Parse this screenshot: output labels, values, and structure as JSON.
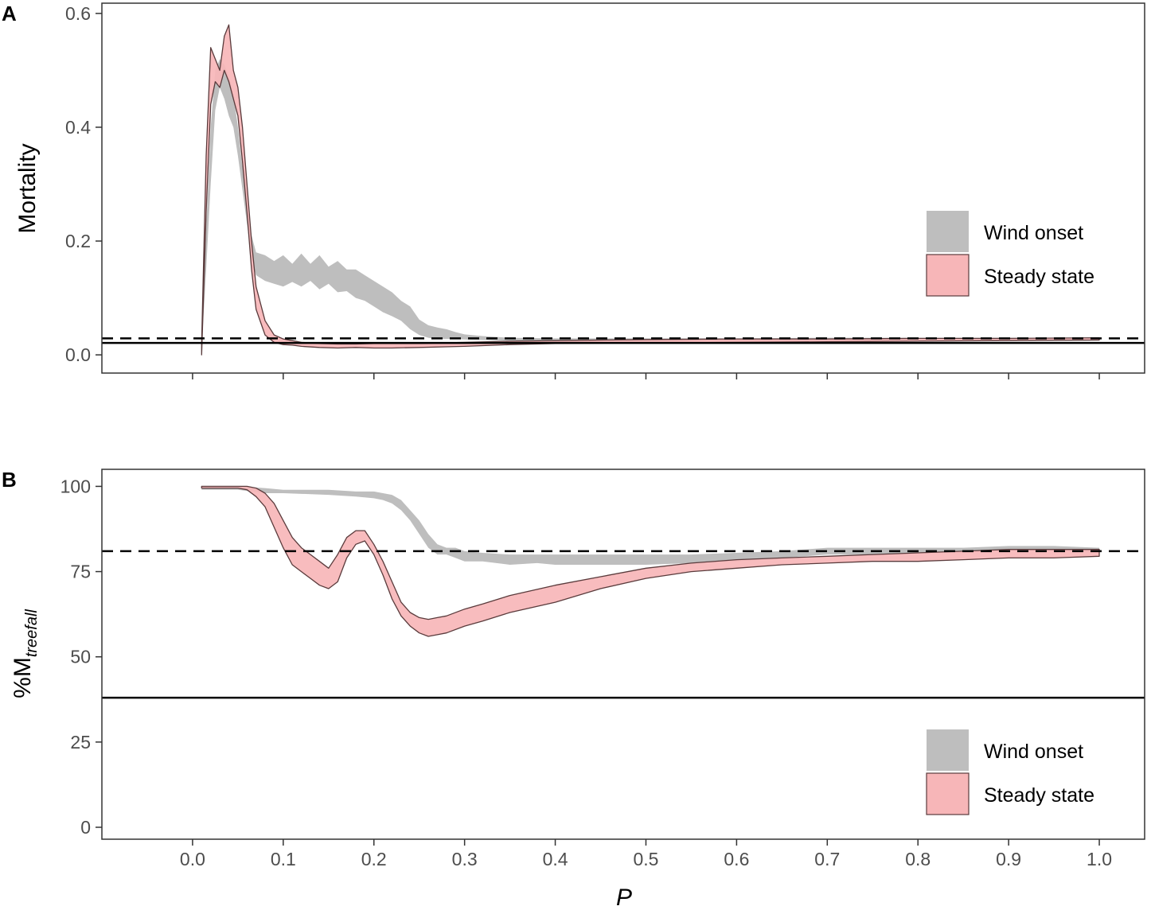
{
  "colors": {
    "wind_onset": "#bebebe",
    "steady_state": "#f7b6b8",
    "steady_state_stroke": "#5a3b3c",
    "reference_line": "#000000",
    "panel_border": "#333333",
    "tick_label": "#4d4d4d"
  },
  "chart_data": [
    {
      "type": "area",
      "panel_label": "A",
      "xlabel": "",
      "ylabel": "Mortality",
      "xlim": [
        -0.1,
        1.05
      ],
      "ylim": [
        -0.032,
        0.618
      ],
      "x_ticks": [
        "0.0",
        "0.1",
        "0.2",
        "0.3",
        "0.4",
        "0.5",
        "0.6",
        "0.7",
        "0.8",
        "0.9",
        "1.0"
      ],
      "x_tick_labels_shown": false,
      "y_ticks": [
        "0.0",
        "0.2",
        "0.4",
        "0.6"
      ],
      "grid": false,
      "legend": {
        "position": "right",
        "entries": [
          "Wind onset",
          "Steady state"
        ]
      },
      "reference_lines": [
        {
          "style": "dashed",
          "y": 0.029
        },
        {
          "style": "solid",
          "y": 0.021
        }
      ],
      "series": [
        {
          "name": "Wind onset",
          "kind": "ribbon",
          "x": [
            0.01,
            0.015,
            0.02,
            0.025,
            0.03,
            0.035,
            0.04,
            0.045,
            0.05,
            0.055,
            0.06,
            0.065,
            0.07,
            0.08,
            0.09,
            0.1,
            0.11,
            0.12,
            0.13,
            0.14,
            0.15,
            0.16,
            0.17,
            0.18,
            0.19,
            0.2,
            0.21,
            0.22,
            0.23,
            0.24,
            0.25,
            0.26,
            0.27,
            0.28,
            0.29,
            0.3,
            0.32,
            0.35,
            0.4,
            0.5,
            0.6,
            0.7,
            0.8,
            0.9,
            1.0
          ],
          "lower": [
            0.01,
            0.15,
            0.3,
            0.43,
            0.47,
            0.45,
            0.42,
            0.4,
            0.35,
            0.29,
            0.23,
            0.17,
            0.14,
            0.13,
            0.125,
            0.12,
            0.128,
            0.12,
            0.13,
            0.115,
            0.125,
            0.11,
            0.112,
            0.1,
            0.095,
            0.085,
            0.075,
            0.068,
            0.06,
            0.045,
            0.035,
            0.03,
            0.028,
            0.028,
            0.028,
            0.027,
            0.026,
            0.025,
            0.024,
            0.024,
            0.024,
            0.025,
            0.026,
            0.027,
            0.028
          ],
          "upper": [
            0.03,
            0.22,
            0.4,
            0.5,
            0.52,
            0.51,
            0.49,
            0.46,
            0.4,
            0.33,
            0.27,
            0.21,
            0.18,
            0.175,
            0.165,
            0.175,
            0.16,
            0.178,
            0.16,
            0.175,
            0.155,
            0.165,
            0.15,
            0.15,
            0.14,
            0.13,
            0.12,
            0.11,
            0.095,
            0.085,
            0.062,
            0.052,
            0.048,
            0.045,
            0.04,
            0.036,
            0.033,
            0.03,
            0.029,
            0.029,
            0.029,
            0.03,
            0.03,
            0.03,
            0.03
          ]
        },
        {
          "name": "Steady state",
          "kind": "ribbon",
          "x": [
            0.01,
            0.015,
            0.02,
            0.025,
            0.03,
            0.035,
            0.04,
            0.045,
            0.05,
            0.055,
            0.06,
            0.065,
            0.07,
            0.08,
            0.09,
            0.1,
            0.11,
            0.12,
            0.14,
            0.16,
            0.18,
            0.2,
            0.22,
            0.25,
            0.3,
            0.35,
            0.4,
            0.5,
            0.6,
            0.7,
            0.8,
            0.9,
            1.0
          ],
          "lower": [
            0.0,
            0.25,
            0.44,
            0.48,
            0.47,
            0.5,
            0.48,
            0.45,
            0.42,
            0.34,
            0.25,
            0.15,
            0.08,
            0.035,
            0.022,
            0.018,
            0.017,
            0.015,
            0.013,
            0.012,
            0.013,
            0.012,
            0.012,
            0.013,
            0.015,
            0.018,
            0.02,
            0.021,
            0.022,
            0.023,
            0.024,
            0.025,
            0.026
          ],
          "upper": [
            0.02,
            0.35,
            0.54,
            0.52,
            0.5,
            0.56,
            0.58,
            0.5,
            0.47,
            0.4,
            0.3,
            0.2,
            0.12,
            0.06,
            0.035,
            0.028,
            0.025,
            0.022,
            0.02,
            0.019,
            0.019,
            0.02,
            0.02,
            0.02,
            0.022,
            0.024,
            0.025,
            0.027,
            0.028,
            0.028,
            0.029,
            0.029,
            0.03
          ]
        }
      ]
    },
    {
      "type": "area",
      "panel_label": "B",
      "xlabel": "P",
      "ylabel": "%M",
      "ylabel_subscript": "treefall",
      "xlim": [
        -0.1,
        1.05
      ],
      "ylim": [
        -3.5,
        105
      ],
      "x_ticks": [
        "0.0",
        "0.1",
        "0.2",
        "0.3",
        "0.4",
        "0.5",
        "0.6",
        "0.7",
        "0.8",
        "0.9",
        "1.0"
      ],
      "x_tick_labels_shown": true,
      "y_ticks": [
        "0",
        "25",
        "50",
        "75",
        "100"
      ],
      "grid": false,
      "legend": {
        "position": "bottom-right",
        "entries": [
          "Wind onset",
          "Steady state"
        ]
      },
      "reference_lines": [
        {
          "style": "dashed",
          "y": 81
        },
        {
          "style": "solid",
          "y": 38
        }
      ],
      "series": [
        {
          "name": "Wind onset",
          "kind": "ribbon",
          "x": [
            0.01,
            0.05,
            0.08,
            0.1,
            0.15,
            0.18,
            0.2,
            0.21,
            0.22,
            0.23,
            0.24,
            0.25,
            0.26,
            0.27,
            0.28,
            0.29,
            0.3,
            0.32,
            0.35,
            0.38,
            0.4,
            0.45,
            0.5,
            0.55,
            0.6,
            0.65,
            0.7,
            0.75,
            0.8,
            0.85,
            0.9,
            0.95,
            1.0
          ],
          "lower": [
            99.0,
            99.0,
            98.0,
            98.0,
            97.5,
            97.0,
            96.5,
            96.0,
            95.0,
            93.0,
            90.0,
            86.0,
            82.0,
            80.0,
            80.0,
            79.0,
            78.0,
            78.0,
            77.0,
            77.5,
            77.0,
            77.0,
            77.0,
            77.5,
            78.0,
            79.0,
            80.0,
            80.0,
            80.5,
            80.5,
            81.0,
            81.0,
            80.5
          ],
          "upper": [
            100.0,
            100.0,
            99.5,
            99.0,
            99.0,
            98.5,
            98.5,
            98.0,
            97.5,
            96.0,
            93.0,
            90.0,
            86.0,
            83.0,
            82.0,
            82.0,
            81.0,
            80.5,
            80.0,
            80.0,
            80.0,
            80.0,
            80.0,
            80.0,
            80.5,
            81.0,
            82.0,
            82.0,
            82.0,
            82.0,
            82.5,
            82.5,
            82.0
          ]
        },
        {
          "name": "Steady state",
          "kind": "ribbon",
          "x": [
            0.01,
            0.05,
            0.06,
            0.07,
            0.08,
            0.09,
            0.1,
            0.11,
            0.12,
            0.13,
            0.14,
            0.15,
            0.16,
            0.17,
            0.18,
            0.19,
            0.2,
            0.21,
            0.22,
            0.23,
            0.24,
            0.25,
            0.26,
            0.27,
            0.28,
            0.3,
            0.32,
            0.35,
            0.4,
            0.45,
            0.5,
            0.55,
            0.6,
            0.65,
            0.7,
            0.75,
            0.8,
            0.85,
            0.9,
            0.95,
            1.0
          ],
          "lower": [
            99.5,
            99.5,
            99.0,
            97.0,
            94.0,
            88.0,
            82.0,
            77.0,
            75.0,
            73.0,
            71.0,
            70.0,
            72.0,
            79.0,
            83.0,
            84.0,
            80.0,
            74.0,
            67.0,
            62.0,
            59.0,
            57.0,
            56.0,
            56.5,
            57.0,
            59.0,
            60.5,
            63.0,
            66.0,
            70.0,
            73.0,
            75.0,
            76.0,
            77.0,
            77.5,
            78.0,
            78.0,
            78.5,
            79.0,
            79.0,
            79.5
          ],
          "upper": [
            100.0,
            100.0,
            100.0,
            99.5,
            98.0,
            95.0,
            90.0,
            85.0,
            82.0,
            80.0,
            78.0,
            76.0,
            80.0,
            85.0,
            87.0,
            87.0,
            83.0,
            78.0,
            72.0,
            66.0,
            63.0,
            61.5,
            61.0,
            61.5,
            62.0,
            64.0,
            65.5,
            68.0,
            71.0,
            73.5,
            76.0,
            77.5,
            78.5,
            79.0,
            79.5,
            80.0,
            80.5,
            81.0,
            81.5,
            81.5,
            81.5
          ]
        }
      ]
    }
  ]
}
